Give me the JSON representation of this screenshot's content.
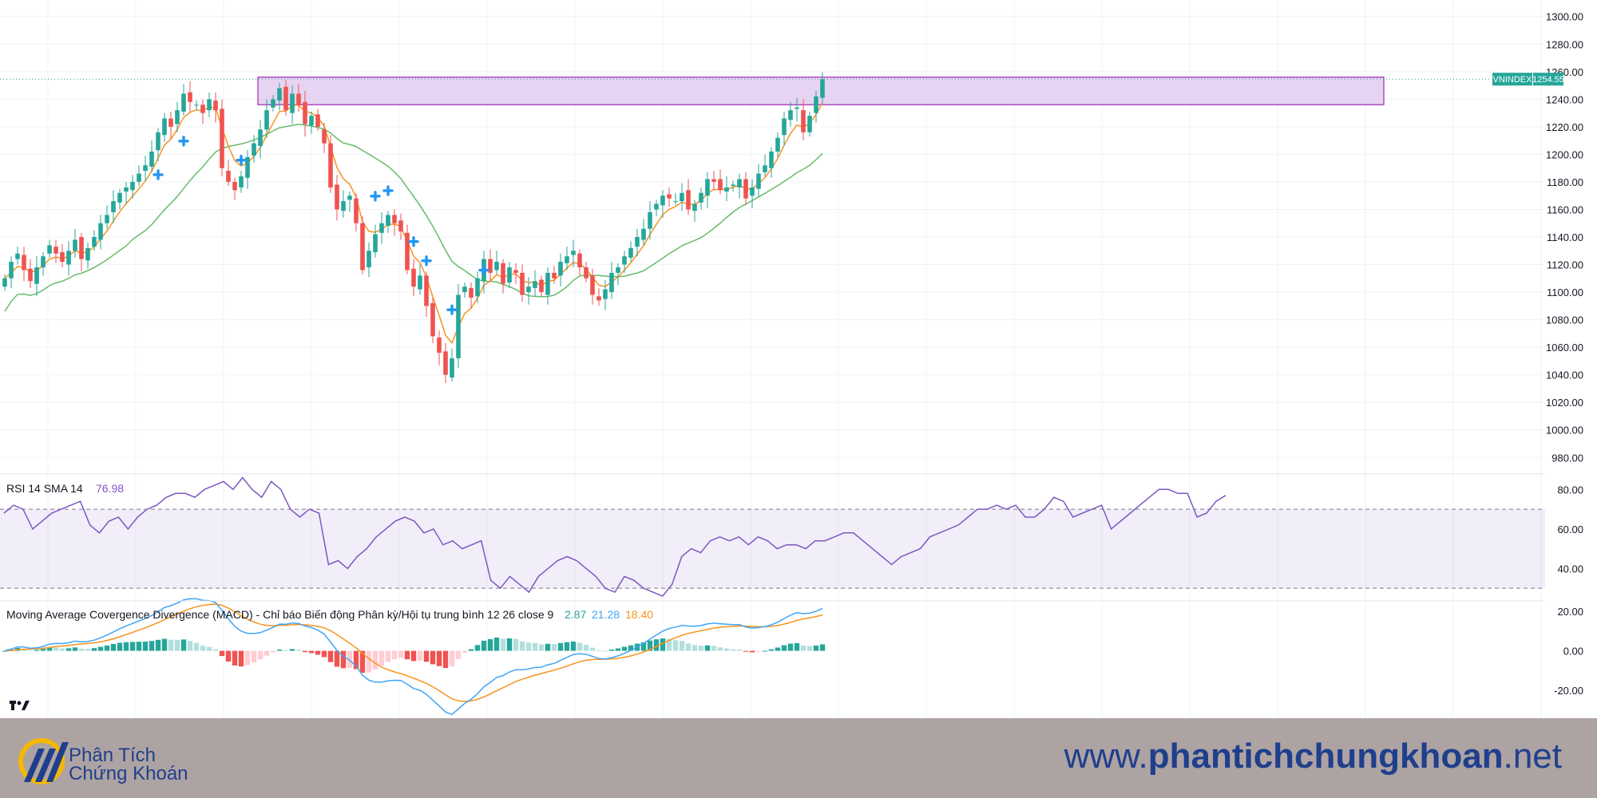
{
  "chart_data": [
    {
      "type": "candlestick",
      "symbol": "VNINDEX",
      "last_price_label": "1254.55",
      "y_ticks": [
        "1300.00",
        "1280.00",
        "1260.00",
        "1240.00",
        "1220.00",
        "1200.00",
        "1180.00",
        "1160.00",
        "1140.00",
        "1120.00",
        "1100.00",
        "1080.00",
        "1060.00",
        "1040.00",
        "1020.00",
        "1000.00",
        "980.00"
      ],
      "ylim": [
        968,
        1312
      ],
      "resistance_zone": [
        1236,
        1256
      ],
      "colors": {
        "up": "#26a69a",
        "down": "#ef5350",
        "ma_fast": "#f7931e",
        "ma_slow": "#66bb6a",
        "zone_fill": "#e3cdf0",
        "zone_border": "#9c27b0",
        "marker": "#2196f3"
      },
      "signal_marker_indices": [
        24,
        28,
        37,
        58,
        60,
        64,
        66,
        70,
        75
      ],
      "closes": [
        1110,
        1122,
        1128,
        1116,
        1108,
        1118,
        1126,
        1134,
        1128,
        1122,
        1130,
        1138,
        1124,
        1132,
        1140,
        1150,
        1156,
        1166,
        1172,
        1176,
        1180,
        1186,
        1192,
        1202,
        1216,
        1226,
        1220,
        1232,
        1244,
        1238,
        1236,
        1230,
        1240,
        1232,
        1190,
        1180,
        1174,
        1184,
        1198,
        1208,
        1218,
        1232,
        1240,
        1248,
        1232,
        1244,
        1236,
        1222,
        1228,
        1220,
        1208,
        1176,
        1160,
        1166,
        1170,
        1150,
        1116,
        1130,
        1142,
        1150,
        1156,
        1150,
        1144,
        1116,
        1104,
        1112,
        1090,
        1068,
        1056,
        1040,
        1052,
        1098,
        1104,
        1096,
        1110,
        1124,
        1114,
        1122,
        1106,
        1118,
        1114,
        1098,
        1104,
        1108,
        1100,
        1114,
        1110,
        1122,
        1126,
        1130,
        1118,
        1110,
        1098,
        1094,
        1102,
        1114,
        1118,
        1126,
        1132,
        1140,
        1146,
        1158,
        1164,
        1170,
        1168,
        1166,
        1172,
        1160,
        1164,
        1172,
        1182,
        1180,
        1174,
        1176,
        1178,
        1182,
        1168,
        1176,
        1186,
        1192,
        1202,
        1212,
        1226,
        1232,
        1234,
        1216,
        1228,
        1242,
        1254.55
      ],
      "rsi": {
        "label": "RSI 14 SMA 14",
        "value": "76.98",
        "y_ticks": [
          "80.00",
          "60.00",
          "40.00"
        ],
        "ylim": [
          24,
          87
        ],
        "overbought": 70,
        "oversold": 30,
        "values": [
          68,
          72,
          70,
          60,
          64,
          68,
          70,
          72,
          74,
          62,
          58,
          64,
          66,
          60,
          66,
          70,
          72,
          76,
          78,
          78,
          76,
          80,
          82,
          84,
          80,
          86,
          80,
          76,
          84,
          80,
          70,
          66,
          70,
          68,
          42,
          44,
          40,
          46,
          50,
          56,
          60,
          64,
          66,
          64,
          58,
          60,
          52,
          54,
          50,
          52,
          54,
          34,
          30,
          36,
          32,
          28,
          36,
          40,
          44,
          46,
          44,
          40,
          36,
          30,
          28,
          36,
          34,
          30,
          28,
          26,
          32,
          46,
          50,
          48,
          54,
          56,
          54,
          56,
          52,
          56,
          54,
          50,
          52,
          52,
          50,
          54,
          54,
          56,
          58,
          58,
          54,
          50,
          46,
          42,
          46,
          48,
          50,
          56,
          58,
          60,
          62,
          66,
          70,
          70,
          72,
          70,
          72,
          66,
          66,
          70,
          76,
          74,
          66,
          68,
          70,
          72,
          60,
          64,
          68,
          72,
          76,
          80,
          80,
          78,
          78,
          66,
          68,
          74,
          76.98
        ]
      },
      "macd": {
        "label": "Moving Average Covergence Divergence (MACD) - Chỉ báo Biến động Phân kỳ/Hội tụ trung bình 12 26 close 9",
        "values_label": [
          "2.87",
          "21.28",
          "18.40"
        ],
        "y_ticks": [
          "20.00",
          "0.00",
          "-20.00"
        ],
        "ylim": [
          -34,
          24
        ],
        "colors": {
          "macd": "#42a5f5",
          "signal": "#f7931e",
          "hist_pos_strong": "#26a69a",
          "hist_pos_weak": "#b2dfdb",
          "hist_neg_strong": "#ef5350",
          "hist_neg_weak": "#ffcdd2"
        }
      }
    }
  ],
  "footer": {
    "brand_line1": "Phân Tích",
    "brand_line2": "Chứng Khoán",
    "website_prefix": "www.",
    "website_main": "phantichchungkhoan",
    "website_suffix": ".net"
  }
}
